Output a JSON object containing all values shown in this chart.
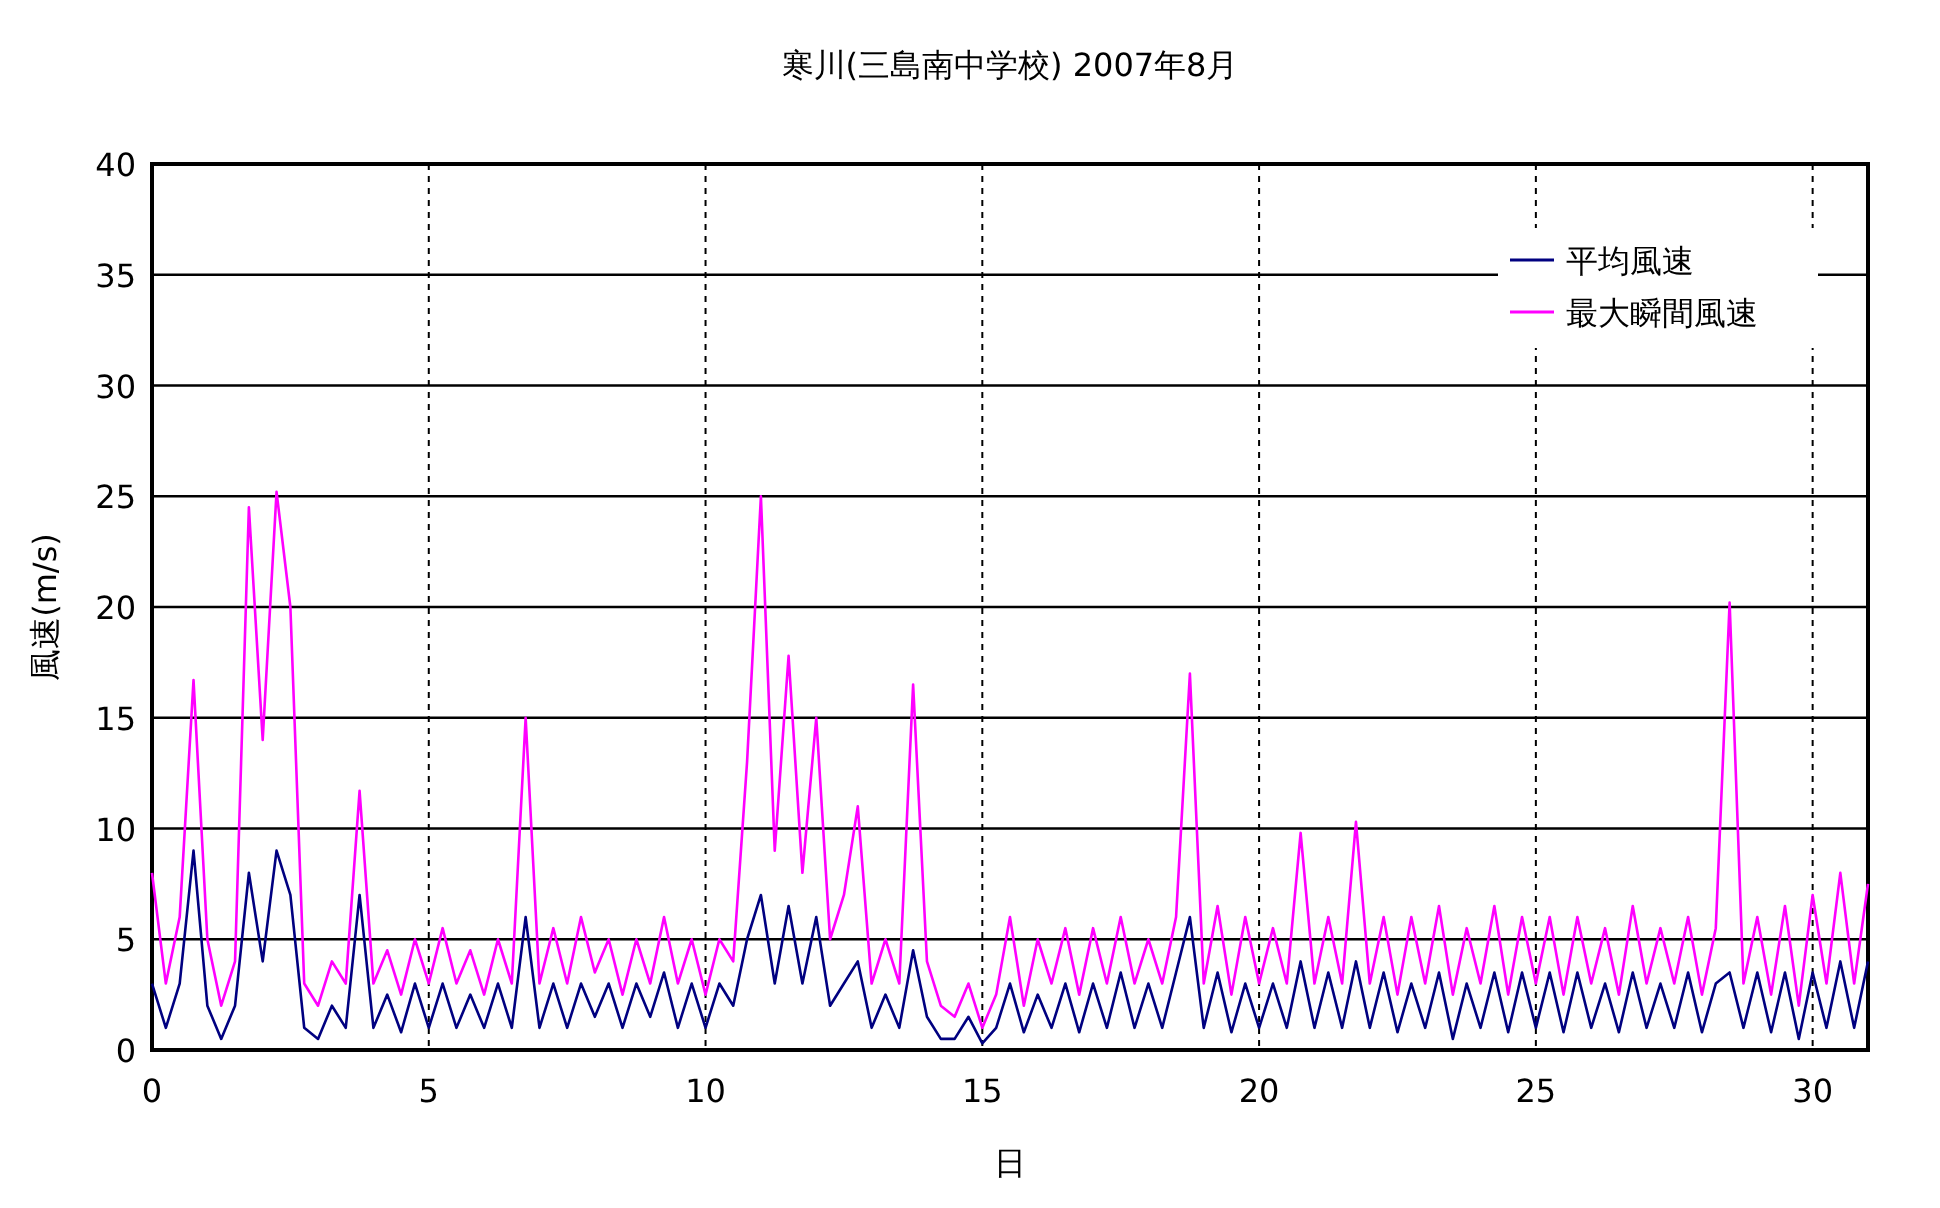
{
  "chart_data": {
    "type": "line",
    "title": "寒川(三島南中学校)  2007年8月",
    "xlabel": "日",
    "ylabel": "風速(m/s)",
    "x": [
      0,
      0.25,
      0.5,
      0.75,
      1,
      1.25,
      1.5,
      1.75,
      2,
      2.25,
      2.5,
      2.75,
      3,
      3.25,
      3.5,
      3.75,
      4,
      4.25,
      4.5,
      4.75,
      5,
      5.25,
      5.5,
      5.75,
      6,
      6.25,
      6.5,
      6.75,
      7,
      7.25,
      7.5,
      7.75,
      8,
      8.25,
      8.5,
      8.75,
      9,
      9.25,
      9.5,
      9.75,
      10,
      10.25,
      10.5,
      10.75,
      11,
      11.25,
      11.5,
      11.75,
      12,
      12.25,
      12.5,
      12.75,
      13,
      13.25,
      13.5,
      13.75,
      14,
      14.25,
      14.5,
      14.75,
      15,
      15.25,
      15.5,
      15.75,
      16,
      16.25,
      16.5,
      16.75,
      17,
      17.25,
      17.5,
      17.75,
      18,
      18.25,
      18.5,
      18.75,
      19,
      19.25,
      19.5,
      19.75,
      20,
      20.25,
      20.5,
      20.75,
      21,
      21.25,
      21.5,
      21.75,
      22,
      22.25,
      22.5,
      22.75,
      23,
      23.25,
      23.5,
      23.75,
      24,
      24.25,
      24.5,
      24.75,
      25,
      25.25,
      25.5,
      25.75,
      26,
      26.25,
      26.5,
      26.75,
      27,
      27.25,
      27.5,
      27.75,
      28,
      28.25,
      28.5,
      28.75,
      29,
      29.25,
      29.5,
      29.75,
      30,
      30.25,
      30.5,
      30.75,
      31
    ],
    "series": [
      {
        "name": "平均風速",
        "color": "#000080",
        "values": [
          3,
          1,
          3,
          9,
          2,
          0.5,
          2,
          8,
          4,
          9,
          7,
          1,
          0.5,
          2,
          1,
          7,
          1,
          2.5,
          0.8,
          3,
          1,
          3,
          1,
          2.5,
          1,
          3,
          1,
          6,
          1,
          3,
          1,
          3,
          1.5,
          3,
          1,
          3,
          1.5,
          3.5,
          1,
          3,
          1,
          3,
          2,
          5,
          7,
          3,
          6.5,
          3,
          6,
          2,
          3,
          4,
          1,
          2.5,
          1,
          4.5,
          1.5,
          0.5,
          0.5,
          1.5,
          0.3,
          1,
          3,
          0.8,
          2.5,
          1,
          3,
          0.8,
          3,
          1,
          3.5,
          1,
          3,
          1,
          3.5,
          6,
          1,
          3.5,
          0.8,
          3,
          1,
          3,
          1,
          4,
          1,
          3.5,
          1,
          4,
          1,
          3.5,
          0.8,
          3,
          1,
          3.5,
          0.5,
          3,
          1,
          3.5,
          0.8,
          3.5,
          1,
          3.5,
          0.8,
          3.5,
          1,
          3,
          0.8,
          3.5,
          1,
          3,
          1,
          3.5,
          0.8,
          3,
          3.5,
          1,
          3.5,
          0.8,
          3.5,
          0.5,
          3.5,
          1,
          4,
          1,
          4
        ]
      },
      {
        "name": "最大瞬間風速",
        "color": "#ff00ff",
        "values": [
          8,
          3,
          6,
          16.7,
          5,
          2,
          4,
          24.5,
          14,
          25.2,
          20,
          3,
          2,
          4,
          3,
          11.7,
          3,
          4.5,
          2.5,
          5,
          3,
          5.5,
          3,
          4.5,
          2.5,
          5,
          3,
          15,
          3,
          5.5,
          3,
          6,
          3.5,
          5,
          2.5,
          5,
          3,
          6,
          3,
          5,
          2.5,
          5,
          4,
          13,
          25,
          9,
          17.8,
          8,
          15,
          5,
          7,
          11,
          3,
          5,
          3,
          16.5,
          4,
          2,
          1.5,
          3,
          1,
          2.5,
          6,
          2,
          5,
          3,
          5.5,
          2.5,
          5.5,
          3,
          6,
          3,
          5,
          3,
          6,
          17,
          3,
          6.5,
          2.5,
          6,
          3,
          5.5,
          3,
          9.8,
          3,
          6,
          3,
          10.3,
          3,
          6,
          2.5,
          6,
          3,
          6.5,
          2.5,
          5.5,
          3,
          6.5,
          2.5,
          6,
          3,
          6,
          2.5,
          6,
          3,
          5.5,
          2.5,
          6.5,
          3,
          5.5,
          3,
          6,
          2.5,
          5.5,
          20.2,
          3,
          6,
          2.5,
          6.5,
          2,
          7,
          3,
          8,
          3,
          7.5
        ]
      }
    ],
    "xlim": [
      0,
      31
    ],
    "xticks": [
      0,
      5,
      10,
      15,
      20,
      25,
      30
    ],
    "ylim": [
      0,
      40
    ],
    "yticks": [
      0,
      5,
      10,
      15,
      20,
      25,
      30,
      35,
      40
    ],
    "grid": true,
    "legend": "top right"
  }
}
